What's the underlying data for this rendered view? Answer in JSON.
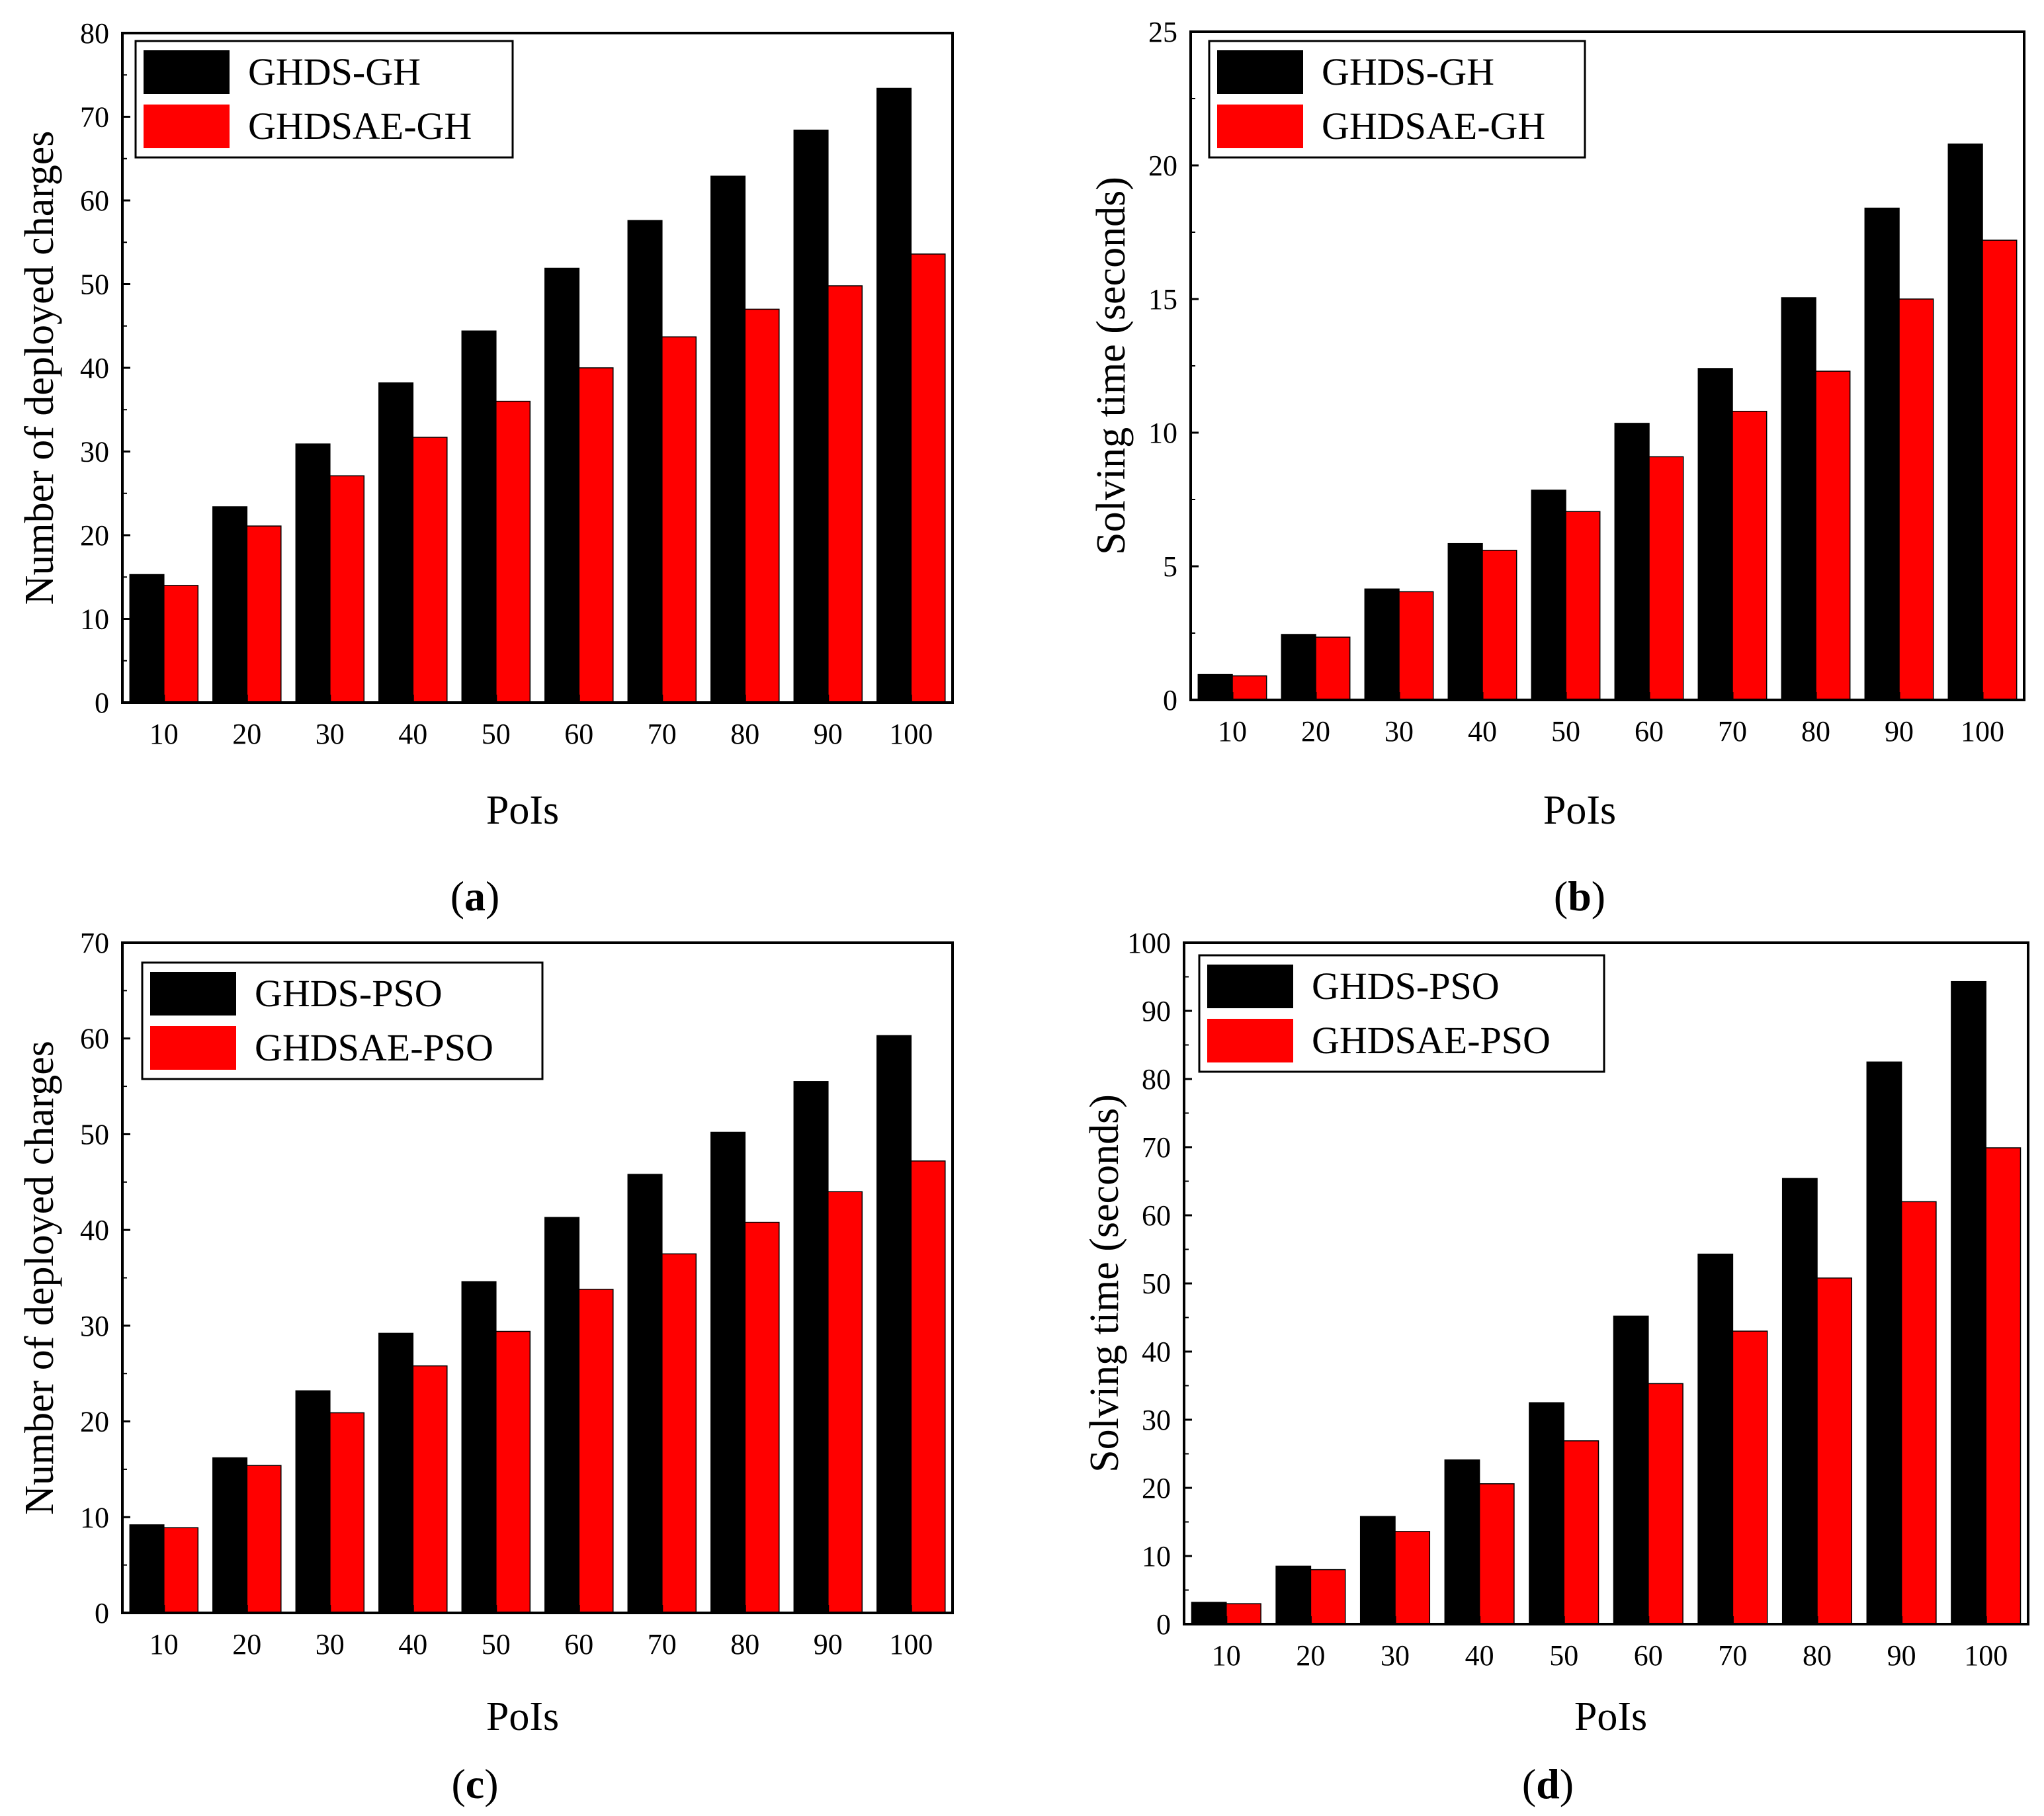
{
  "figure": {
    "colors": {
      "series_1": "#000000",
      "series_2": "#ff0000"
    }
  },
  "chart_data": [
    {
      "panel": "a",
      "type": "bar",
      "categories": [
        "10",
        "20",
        "30",
        "40",
        "50",
        "60",
        "70",
        "80",
        "90",
        "100"
      ],
      "series": [
        {
          "name": "GHDS-GH",
          "values": [
            15.3,
            23.4,
            30.9,
            38.2,
            44.4,
            51.9,
            57.6,
            62.9,
            68.4,
            73.4
          ]
        },
        {
          "name": "GHDSAE-GH",
          "values": [
            14.0,
            21.1,
            27.1,
            31.7,
            36.0,
            40.0,
            43.7,
            47.0,
            49.8,
            53.6
          ]
        }
      ],
      "yticks": [
        "0",
        "10",
        "20",
        "30",
        "40",
        "50",
        "60",
        "70",
        "80"
      ],
      "ylim": [
        0,
        80
      ],
      "xlabel": "PoIs",
      "ylabel": "Number of deployed charges",
      "legend": "top-left",
      "label": {
        "open": "(",
        "letter": "a",
        "close": ")"
      }
    },
    {
      "panel": "b",
      "type": "bar",
      "categories": [
        "10",
        "20",
        "30",
        "40",
        "50",
        "60",
        "70",
        "80",
        "90",
        "100"
      ],
      "series": [
        {
          "name": "GHDS-GH",
          "values": [
            0.95,
            2.45,
            4.15,
            5.85,
            7.85,
            10.35,
            12.4,
            15.05,
            18.4,
            20.8
          ]
        },
        {
          "name": "GHDSAE-GH",
          "values": [
            0.9,
            2.35,
            4.05,
            5.6,
            7.05,
            9.1,
            10.8,
            12.3,
            15.0,
            17.2
          ]
        }
      ],
      "yticks": [
        "0",
        "5",
        "10",
        "15",
        "20",
        "25"
      ],
      "ylim": [
        0,
        25
      ],
      "xlabel": "PoIs",
      "ylabel": "Solving time (seconds)",
      "legend": "top-left",
      "label": {
        "open": "(",
        "letter": "b",
        "close": ")"
      }
    },
    {
      "panel": "c",
      "type": "bar",
      "categories": [
        "10",
        "20",
        "30",
        "40",
        "50",
        "60",
        "70",
        "80",
        "90",
        "100"
      ],
      "series": [
        {
          "name": "GHDS-PSO",
          "values": [
            9.2,
            16.2,
            23.2,
            29.2,
            34.6,
            41.3,
            45.8,
            50.2,
            55.5,
            60.3
          ]
        },
        {
          "name": "GHDSAE-PSO",
          "values": [
            8.9,
            15.4,
            20.9,
            25.8,
            29.4,
            33.8,
            37.5,
            40.8,
            44.0,
            47.2
          ]
        }
      ],
      "yticks": [
        "0",
        "10",
        "20",
        "30",
        "40",
        "50",
        "60",
        "70"
      ],
      "ylim": [
        0,
        70
      ],
      "xlabel": "PoIs",
      "ylabel": "Number of deployed charges",
      "legend": "top-left",
      "label": {
        "open": "(",
        "letter": "c",
        "close": ")"
      }
    },
    {
      "panel": "d",
      "type": "bar",
      "categories": [
        "10",
        "20",
        "30",
        "40",
        "50",
        "60",
        "70",
        "80",
        "90",
        "100"
      ],
      "series": [
        {
          "name": "GHDS-PSO",
          "values": [
            3.2,
            8.5,
            15.8,
            24.1,
            32.5,
            45.2,
            54.3,
            65.4,
            82.5,
            94.3
          ]
        },
        {
          "name": "GHDSAE-PSO",
          "values": [
            3.0,
            8.0,
            13.6,
            20.6,
            26.9,
            35.3,
            43.0,
            50.8,
            62.0,
            69.9
          ]
        }
      ],
      "yticks": [
        "0",
        "10",
        "20",
        "30",
        "40",
        "50",
        "60",
        "70",
        "80",
        "90",
        "100"
      ],
      "ylim": [
        0,
        100
      ],
      "xlabel": "PoIs",
      "ylabel": "Solving time (seconds)",
      "legend": "top-left",
      "label": {
        "open": "(",
        "letter": "d",
        "close": ")"
      }
    }
  ]
}
